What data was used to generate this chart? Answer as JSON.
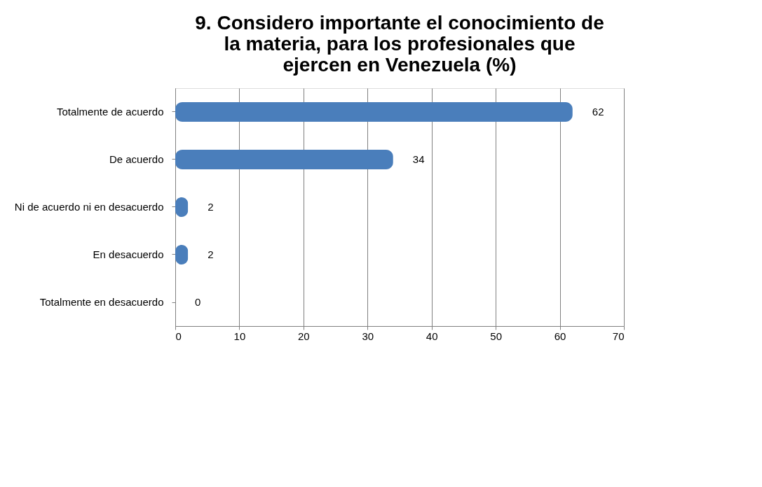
{
  "chart_data": {
    "type": "bar",
    "orientation": "horizontal",
    "title": "9. Considero importante el conocimiento de la materia, para los profesionales que ejercen en Venezuela (%)",
    "categories": [
      "Totalmente de acuerdo",
      "De acuerdo",
      "Ni de acuerdo ni en desacuerdo",
      "En desacuerdo",
      "Totalmente en desacuerdo"
    ],
    "values": [
      62,
      34,
      2,
      2,
      0
    ],
    "color": "#4a7ebb",
    "xlim": [
      0,
      70
    ],
    "xticks": [
      0,
      10,
      20,
      30,
      40,
      50,
      60,
      70
    ],
    "grid": "x",
    "data_labels": true
  }
}
